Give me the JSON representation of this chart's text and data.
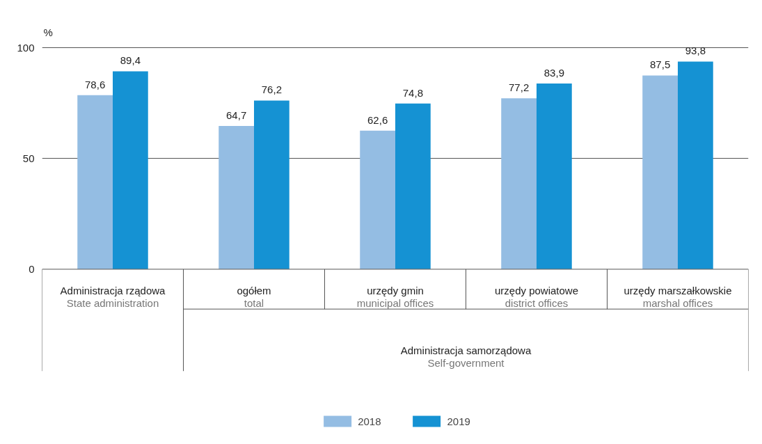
{
  "chart_data": {
    "type": "bar",
    "categories": [
      "Administracja rządowa\nState administration",
      "ogółem\ntotal",
      "urzędy gmin\nmunicipal offices",
      "urzędy powiatowe\ndistrict offices",
      "urzędy marszałkowskie\nmarshal offices"
    ],
    "series": [
      {
        "name": "2018",
        "color": "#94bde3",
        "values": [
          78.6,
          64.7,
          62.6,
          77.2,
          87.5
        ],
        "value_labels": [
          "78,6",
          "64,7",
          "62,6",
          "77,2",
          "87,5"
        ]
      },
      {
        "name": "2019",
        "color": "#1592d3",
        "values": [
          89.4,
          76.2,
          74.8,
          83.9,
          93.8
        ],
        "value_labels": [
          "89,4",
          "76,2",
          "74,8",
          "83,9",
          "93,8"
        ]
      }
    ],
    "ylabel": "%",
    "ylim": [
      0,
      100
    ],
    "yticks": [
      0,
      50,
      100
    ],
    "grid": "y",
    "legend": "bottom",
    "annotations": [
      "Administracja samorządowa\nSelf-government"
    ]
  }
}
